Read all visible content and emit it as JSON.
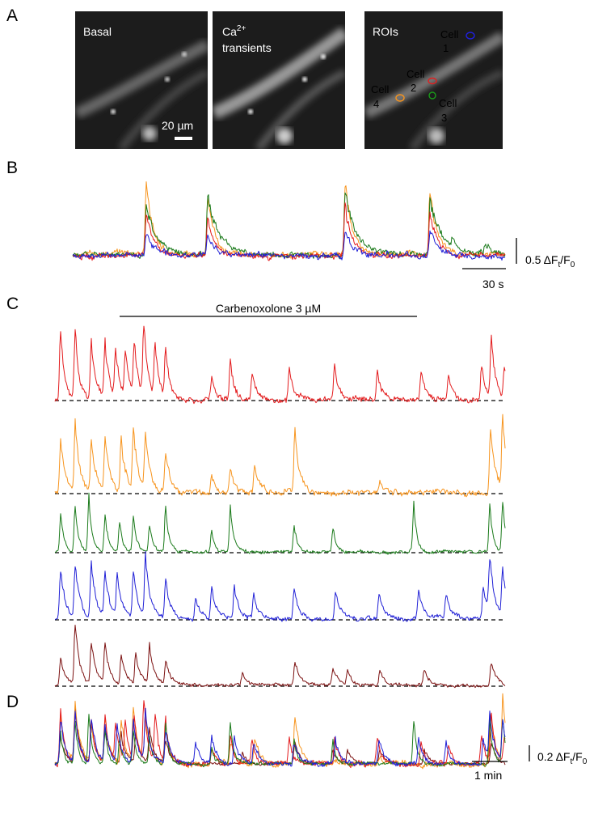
{
  "panels": {
    "a": {
      "label": "A",
      "basal": {
        "caption": "Basal",
        "scale_bar": "20 µm"
      },
      "transients": {
        "caption_main": "Ca",
        "caption_sup": "2+",
        "caption_line2": "transients"
      },
      "rois": {
        "caption": "ROIs",
        "cells": [
          {
            "word": "Cell",
            "number": "1"
          },
          {
            "word": "Cell",
            "number": "2"
          },
          {
            "word": "Cell",
            "number": "3"
          },
          {
            "word": "Cell",
            "number": "4"
          }
        ]
      }
    },
    "b": {
      "label": "B",
      "y_scale": {
        "amount": "0.5 ΔF",
        "sub_t": "t",
        "slash": "/F",
        "sub_0": "0"
      },
      "x_scale": "30 s"
    },
    "c": {
      "label": "C",
      "drug": "Carbenoxolone 3 µM"
    },
    "d": {
      "label": "D",
      "y_scale": {
        "amount": "0.2 ΔF",
        "sub_t": "t",
        "slash": "/F",
        "sub_0": "0"
      },
      "x_scale": "1 min"
    }
  }
}
